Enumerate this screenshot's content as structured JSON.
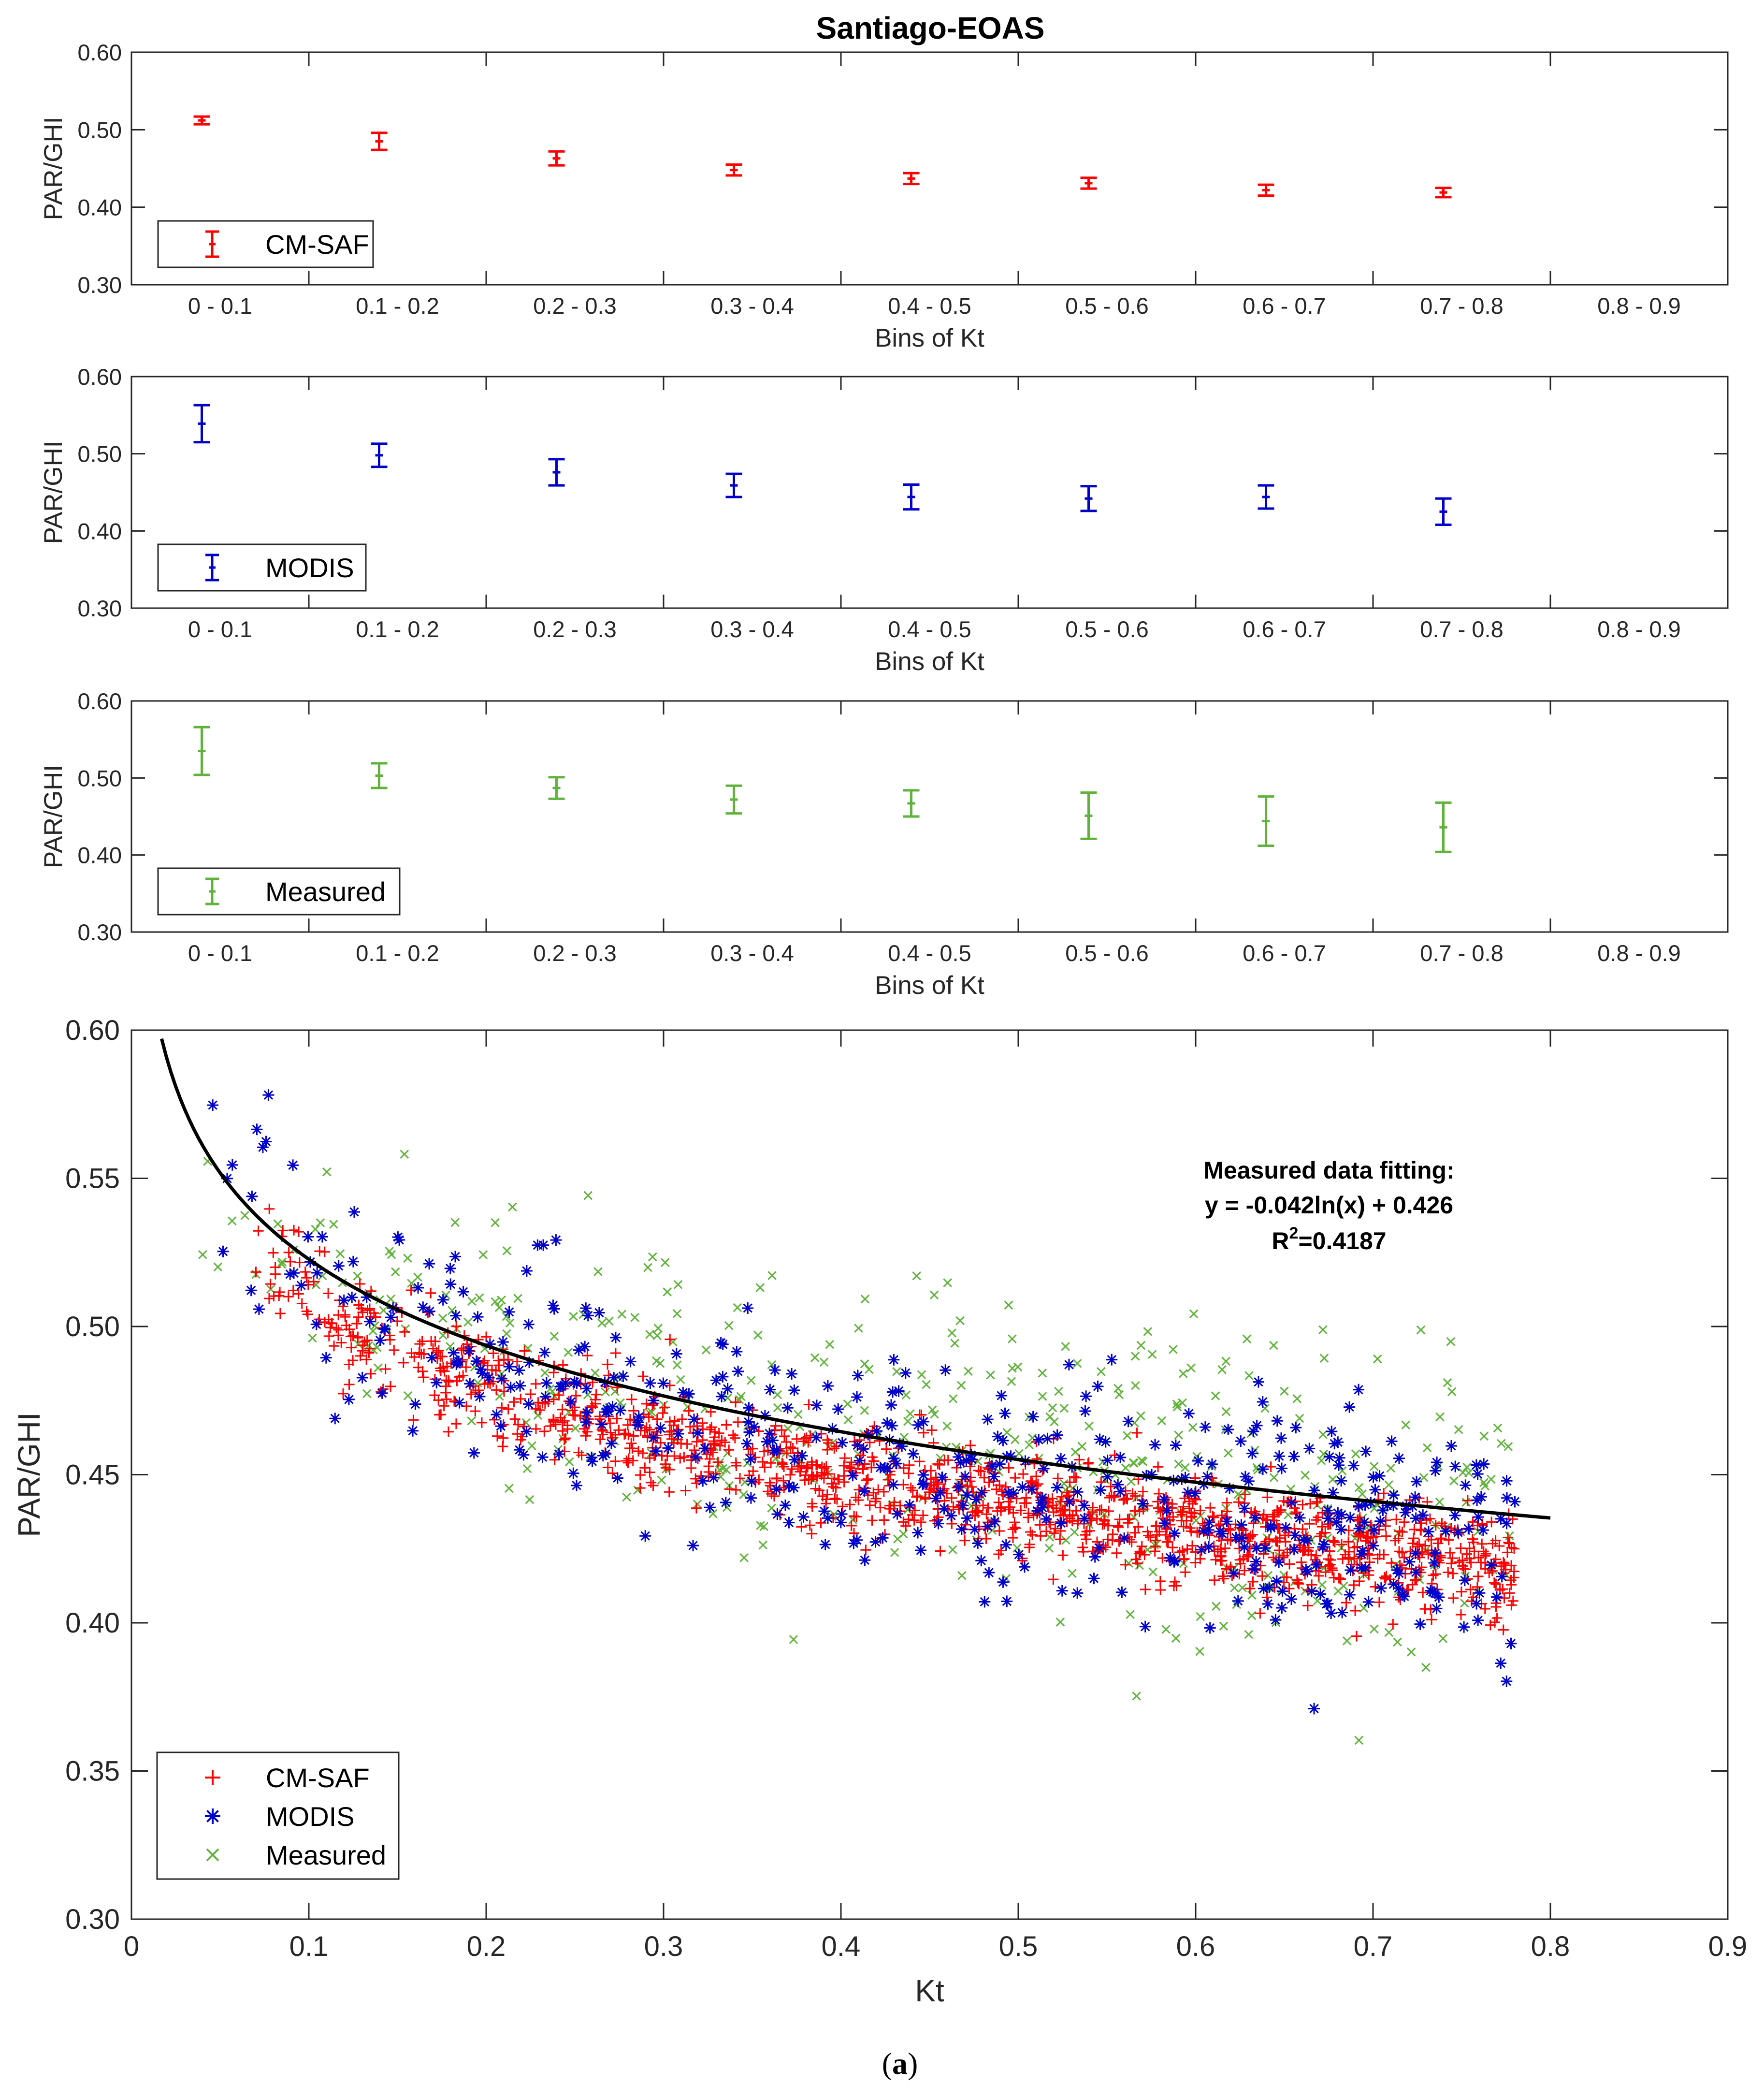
{
  "figure": {
    "title": "Santiago-EOAS",
    "caption_open": "(",
    "caption_letter": "a",
    "caption_close": ")"
  },
  "colors": {
    "cmsaf": "#ff0000",
    "modis": "#0000cc",
    "measured": "#5fb33a",
    "fit": "#000000",
    "axis": "#262626"
  },
  "chart_data": [
    {
      "type": "errorbar",
      "id": "cmsaf-bins",
      "series_name": "CM-SAF",
      "xlabel": "Bins of Kt",
      "ylabel": "PAR/GHI",
      "ylim": [
        0.3,
        0.6
      ],
      "yticks": [
        "0.30",
        "0.40",
        "0.50",
        "0.60"
      ],
      "categories": [
        "0 - 0.1",
        "0.1 - 0.2",
        "0.2 - 0.3",
        "0.3 - 0.4",
        "0.4 - 0.5",
        "0.5 - 0.6",
        "0.6 - 0.7",
        "0.7 - 0.8",
        "0.8 - 0.9"
      ],
      "means": [
        0.512,
        0.485,
        0.463,
        0.448,
        0.437,
        0.431,
        0.422,
        0.419,
        null
      ],
      "errors": [
        0.005,
        0.011,
        0.009,
        0.007,
        0.007,
        0.007,
        0.007,
        0.006,
        null
      ],
      "legend": "CM-SAF"
    },
    {
      "type": "errorbar",
      "id": "modis-bins",
      "series_name": "MODIS",
      "xlabel": "Bins of Kt",
      "ylabel": "PAR/GHI",
      "ylim": [
        0.3,
        0.6
      ],
      "yticks": [
        "0.30",
        "0.40",
        "0.50",
        "0.60"
      ],
      "categories": [
        "0 - 0.1",
        "0.1 - 0.2",
        "0.2 - 0.3",
        "0.3 - 0.4",
        "0.4 - 0.5",
        "0.5 - 0.6",
        "0.6 - 0.7",
        "0.7 - 0.8",
        "0.8 - 0.9"
      ],
      "means": [
        0.539,
        0.498,
        0.476,
        0.459,
        0.444,
        0.442,
        0.444,
        0.425,
        null
      ],
      "errors": [
        0.024,
        0.015,
        0.017,
        0.015,
        0.016,
        0.016,
        0.015,
        0.017,
        null
      ],
      "legend": "MODIS"
    },
    {
      "type": "errorbar",
      "id": "measured-bins",
      "series_name": "Measured",
      "xlabel": "Bins of Kt",
      "ylabel": "PAR/GHI",
      "ylim": [
        0.3,
        0.6
      ],
      "yticks": [
        "0.30",
        "0.40",
        "0.50",
        "0.60"
      ],
      "categories": [
        "0 - 0.1",
        "0.1 - 0.2",
        "0.2 - 0.3",
        "0.3 - 0.4",
        "0.4 - 0.5",
        "0.5 - 0.6",
        "0.6 - 0.7",
        "0.7 - 0.8",
        "0.8 - 0.9"
      ],
      "means": [
        0.535,
        0.503,
        0.487,
        0.472,
        0.467,
        0.451,
        0.444,
        0.436,
        null
      ],
      "errors": [
        0.031,
        0.016,
        0.014,
        0.018,
        0.017,
        0.03,
        0.032,
        0.032,
        null
      ],
      "legend": "Measured"
    },
    {
      "type": "scatter",
      "id": "scatter-main",
      "xlabel": "Kt",
      "ylabel": "PAR/GHI",
      "xlim": [
        0,
        0.9
      ],
      "ylim": [
        0.3,
        0.6
      ],
      "xticks": [
        "0",
        "0.1",
        "0.2",
        "0.3",
        "0.4",
        "0.5",
        "0.6",
        "0.7",
        "0.8",
        "0.9"
      ],
      "yticks": [
        "0.30",
        "0.35",
        "0.40",
        "0.45",
        "0.50",
        "0.55",
        "0.60"
      ],
      "legend": [
        "CM-SAF",
        "MODIS",
        "Measured"
      ],
      "series": [
        {
          "name": "CM-SAF",
          "marker": "+",
          "count": 1400,
          "x_range": [
            0.07,
            0.78
          ],
          "y_model": {
            "a": -0.045,
            "b": 0.408
          },
          "spread": 0.009
        },
        {
          "name": "MODIS",
          "marker": "*",
          "count": 520,
          "x_range": [
            0.04,
            0.78
          ],
          "y_model": {
            "a": -0.048,
            "b": 0.413
          },
          "spread": 0.019
        },
        {
          "name": "Measured",
          "marker": "x",
          "count": 480,
          "x_range": [
            0.04,
            0.78
          ],
          "y_model": {
            "a": -0.042,
            "b": 0.426
          },
          "spread": 0.025
        }
      ],
      "fit": {
        "a": -0.042,
        "b": 0.426,
        "x_range": [
          0.017,
          0.8
        ]
      },
      "annotation": {
        "line1": "Measured data fitting:",
        "line2": "y = -0.042ln(x) + 0.426",
        "line3_prefix": "R",
        "line3_sup": "2",
        "line3_suffix": "=0.4187"
      }
    }
  ]
}
